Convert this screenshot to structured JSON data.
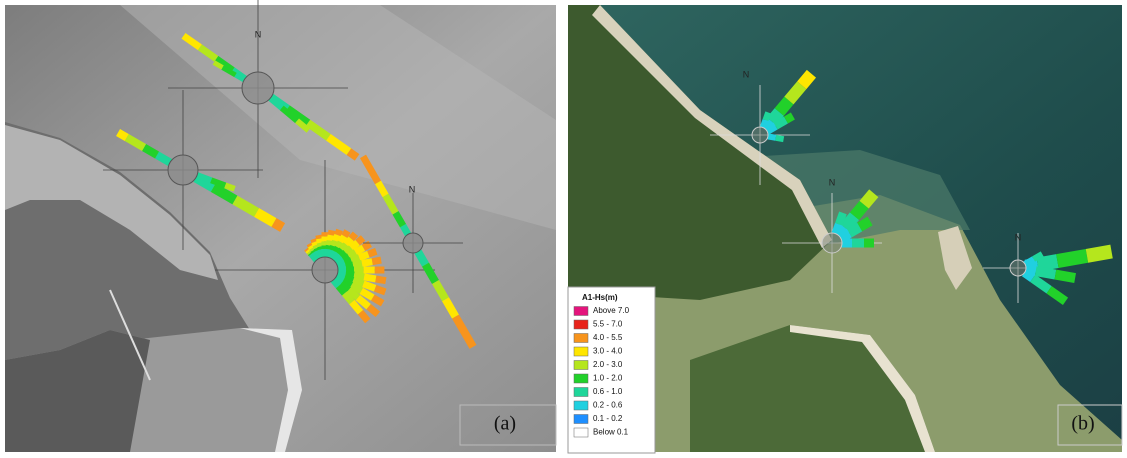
{
  "panels": [
    {
      "label": "(a)",
      "north_labels": [
        "N",
        "N"
      ]
    },
    {
      "label": "(b)",
      "north_labels": [
        "N",
        "N",
        "N"
      ],
      "legend": {
        "title": "A1-Hs(m)",
        "entries": [
          {
            "label": "Above 7.0",
            "color": "#e4147c"
          },
          {
            "label": "5.5 - 7.0",
            "color": "#e8231b"
          },
          {
            "label": "4.0 - 5.5",
            "color": "#f7941d"
          },
          {
            "label": "3.0 - 4.0",
            "color": "#ffe600"
          },
          {
            "label": "2.0 - 3.0",
            "color": "#b5e61d"
          },
          {
            "label": "1.0 - 2.0",
            "color": "#22d12a"
          },
          {
            "label": "0.6 - 1.0",
            "color": "#1fd69a"
          },
          {
            "label": "0.2 - 0.6",
            "color": "#20d0e0"
          },
          {
            "label": "0.1 - 0.2",
            "color": "#1e8fff"
          },
          {
            "label": "Below 0.1",
            "color": "#ffffff"
          }
        ]
      }
    }
  ]
}
